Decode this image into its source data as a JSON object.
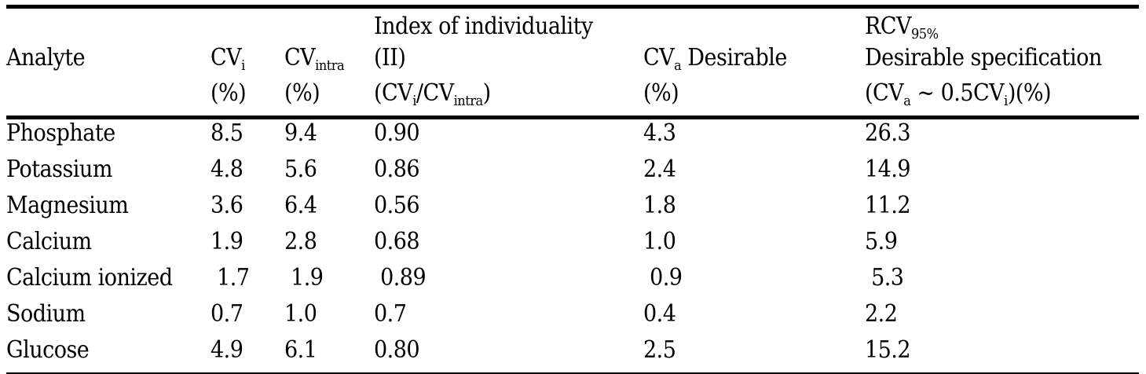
{
  "table": {
    "headers": {
      "analyte": "Analyte",
      "cvi_main": "CV",
      "cvi_sub": "i",
      "cvi_unit": "(%)",
      "cvintra_main": "CV",
      "cvintra_sub": "intra",
      "cvintra_unit": "(%)",
      "ii_line1": "Index of individuality",
      "ii_line2": "(II)",
      "ii_line3_a": "(CV",
      "ii_line3_sub1": "i",
      "ii_line3_b": "/CV",
      "ii_line3_sub2": "intra",
      "ii_line3_c": ")",
      "cva_main": "CV",
      "cva_sub": "a",
      "cva_rest": " Desirable",
      "cva_unit": "(%)",
      "rcv_main": "RCV",
      "rcv_sub": "95%",
      "rcv_line2": "Desirable specification",
      "rcv_line3_a": "(CV",
      "rcv_line3_sub1": "a",
      "rcv_line3_b": " ~ 0.5CV",
      "rcv_line3_sub2": "i",
      "rcv_line3_c": ")(%)"
    },
    "rows": [
      {
        "analyte": "Phosphate",
        "cvi": "8.5",
        "cvintra": "9.4",
        "ii": "0.90",
        "cva": "4.3",
        "rcv": "26.3"
      },
      {
        "analyte": "Potassium",
        "cvi": "4.8",
        "cvintra": "5.6",
        "ii": "0.86",
        "cva": "2.4",
        "rcv": "14.9"
      },
      {
        "analyte": "Magnesium",
        "cvi": "3.6",
        "cvintra": "6.4",
        "ii": "0.56",
        "cva": "1.8",
        "rcv": "11.2"
      },
      {
        "analyte": "Calcium",
        "cvi": "1.9",
        "cvintra": "2.8",
        "ii": "0.68",
        "cva": "1.0",
        "rcv": "5.9"
      },
      {
        "analyte": "Calcium ionized",
        "cvi": " 1.7",
        "cvintra": " 1.9",
        "ii": " 0.89",
        "cva": " 0.9",
        "rcv": " 5.3"
      },
      {
        "analyte": "Sodium",
        "cvi": "0.7",
        "cvintra": "1.0",
        "ii": "0.7",
        "cva": "0.4",
        "rcv": "2.2"
      },
      {
        "analyte": "Glucose",
        "cvi": "4.9",
        "cvintra": "6.1",
        "ii": "0.80",
        "cva": "2.5",
        "rcv": "15.2"
      }
    ]
  }
}
